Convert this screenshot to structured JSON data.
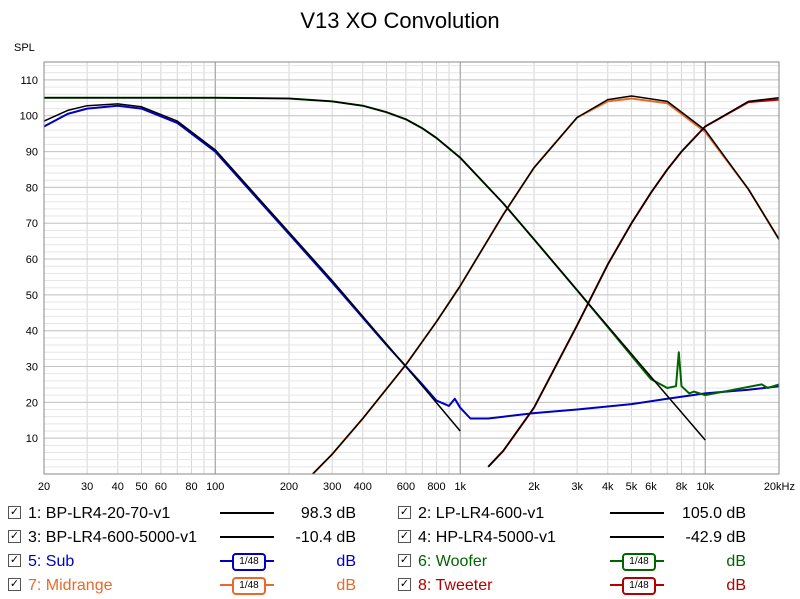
{
  "chart_data": {
    "type": "line",
    "title": "V13 XO Convolution",
    "ylabel": "SPL",
    "xlabel": "",
    "x_scale": "log",
    "xlim": [
      20,
      20000
    ],
    "ylim": [
      0,
      115
    ],
    "grid": true,
    "x_tick_labels": [
      {
        "value": 20,
        "label": "20"
      },
      {
        "value": 30,
        "label": "30"
      },
      {
        "value": 40,
        "label": "40"
      },
      {
        "value": 50,
        "label": "50"
      },
      {
        "value": 60,
        "label": "60"
      },
      {
        "value": 80,
        "label": "80"
      },
      {
        "value": 100,
        "label": "100"
      },
      {
        "value": 200,
        "label": "200"
      },
      {
        "value": 300,
        "label": "300"
      },
      {
        "value": 400,
        "label": "400"
      },
      {
        "value": 600,
        "label": "600"
      },
      {
        "value": 800,
        "label": "800"
      },
      {
        "value": 1000,
        "label": "1k"
      },
      {
        "value": 2000,
        "label": "2k"
      },
      {
        "value": 3000,
        "label": "3k"
      },
      {
        "value": 4000,
        "label": "4k"
      },
      {
        "value": 5000,
        "label": "5k"
      },
      {
        "value": 6000,
        "label": "6k"
      },
      {
        "value": 8000,
        "label": "8k"
      },
      {
        "value": 10000,
        "label": "10k"
      },
      {
        "value": 20000,
        "label": "20kHz"
      }
    ],
    "y_ticks": [
      10,
      20,
      30,
      40,
      50,
      60,
      70,
      80,
      90,
      100,
      110
    ],
    "series": [
      {
        "name": "BP-LR4-20-70-v1",
        "color": "#000000",
        "x": [
          20,
          25,
          30,
          40,
          50,
          70,
          100,
          150,
          200,
          300,
          500,
          700,
          1000
        ],
        "y": [
          98.5,
          101.5,
          102.8,
          103.3,
          102.5,
          98.5,
          90.5,
          77,
          67.5,
          54,
          36.3,
          24.6,
          12
        ]
      },
      {
        "name": "LP-LR4-600-v1",
        "color": "#000000",
        "x": [
          20,
          100,
          200,
          300,
          400,
          500,
          600,
          700,
          800,
          1000,
          1500,
          2000,
          3000,
          5000,
          7000,
          10000
        ],
        "y": [
          105,
          105,
          104.8,
          104,
          102.8,
          101,
          99,
          96.5,
          93.8,
          88.3,
          75.5,
          65.5,
          51.3,
          33.5,
          21.8,
          9.5
        ]
      },
      {
        "name": "BP-LR4-600-5000-v1",
        "color": "#000000",
        "x": [
          250,
          300,
          400,
          600,
          800,
          1000,
          1500,
          2000,
          3000,
          4000,
          5000,
          7000,
          10000,
          15000,
          20000
        ],
        "y": [
          0,
          5.5,
          15.5,
          30.5,
          42.5,
          52.5,
          72.5,
          85.5,
          99.5,
          104.5,
          105.5,
          104,
          96,
          79.5,
          65.5
        ]
      },
      {
        "name": "HP-LR4-5000-v1",
        "color": "#000000",
        "x": [
          1300,
          1500,
          2000,
          3000,
          4000,
          5000,
          6000,
          7000,
          8000,
          10000,
          15000,
          20000
        ],
        "y": [
          2,
          6.5,
          18.5,
          41.5,
          58.5,
          70,
          78.5,
          85,
          90,
          97,
          104,
          105
        ]
      },
      {
        "name": "Sub",
        "color": "#0000c0",
        "x": [
          20,
          25,
          30,
          40,
          50,
          70,
          100,
          150,
          200,
          300,
          500,
          700,
          800,
          900,
          950,
          1000,
          1100,
          1300,
          1500,
          2000,
          3000,
          5000,
          7000,
          10000,
          15000,
          20000
        ],
        "y": [
          97,
          100.5,
          102,
          102.8,
          102,
          98,
          90,
          76.5,
          67,
          53.5,
          36,
          25,
          20.5,
          19,
          21,
          18.5,
          15.5,
          15.5,
          16,
          17,
          18,
          19.5,
          21,
          22.5,
          23.5,
          24.5
        ]
      },
      {
        "name": "Woofer",
        "color": "#006400",
        "x": [
          20,
          100,
          200,
          300,
          400,
          500,
          600,
          700,
          800,
          1000,
          1500,
          2000,
          3000,
          4000,
          5000,
          6000,
          7000,
          7600,
          7800,
          8000,
          8300,
          8600,
          9000,
          10000,
          13000,
          17000,
          18000,
          20000
        ],
        "y": [
          105,
          105,
          104.8,
          104,
          102.8,
          101,
          99,
          96.5,
          93.8,
          88.3,
          75.5,
          65.5,
          51.3,
          41,
          33,
          26.5,
          24,
          24.5,
          34,
          24.5,
          23.5,
          22.5,
          23,
          22,
          23.5,
          25,
          24,
          25
        ]
      },
      {
        "name": "Midrange",
        "color": "#e86a2a",
        "x": [
          250,
          300,
          400,
          600,
          800,
          1000,
          1500,
          2000,
          3000,
          4000,
          5000,
          7000,
          10000,
          15000,
          20000
        ],
        "y": [
          0,
          5.5,
          15.5,
          30.5,
          42.5,
          52.5,
          72.5,
          85.5,
          99.5,
          104,
          104.8,
          103.5,
          95.5,
          79.5,
          65.5
        ]
      },
      {
        "name": "Tweeter",
        "color": "#b00000",
        "x": [
          1300,
          1500,
          2000,
          3000,
          4000,
          5000,
          6000,
          7000,
          8000,
          10000,
          15000,
          20000
        ],
        "y": [
          2,
          6.5,
          18.5,
          41.5,
          58.5,
          70,
          78.5,
          85,
          90,
          97,
          103.8,
          104.5
        ]
      }
    ]
  },
  "legend": {
    "rows": [
      {
        "left": {
          "id": "1:",
          "name": "BP-LR4-20-70-v1",
          "color": "#000000",
          "value": "98.3 dB",
          "checked": "✓"
        },
        "right": {
          "id": "2:",
          "name": "LP-LR4-600-v1",
          "color": "#000000",
          "value": "105.0 dB",
          "checked": "✓"
        }
      },
      {
        "left": {
          "id": "3:",
          "name": "BP-LR4-600-5000-v1",
          "color": "#000000",
          "value": "-10.4 dB",
          "checked": "✓"
        },
        "right": {
          "id": "4:",
          "name": "HP-LR4-5000-v1",
          "color": "#000000",
          "value": "-42.9 dB",
          "checked": "✓"
        }
      },
      {
        "left": {
          "id": "5:",
          "name": "Sub",
          "color": "#0000c0",
          "value": "dB",
          "smoothing": "1/48",
          "checked": "✓"
        },
        "right": {
          "id": "6:",
          "name": "Woofer",
          "color": "#006400",
          "value": "dB",
          "smoothing": "1/48",
          "checked": "✓"
        }
      },
      {
        "left": {
          "id": "7:",
          "name": "Midrange",
          "color": "#e86a2a",
          "value": "dB",
          "smoothing": "1/48",
          "checked": "✓"
        },
        "right": {
          "id": "8:",
          "name": "Tweeter",
          "color": "#b00000",
          "value": "dB",
          "smoothing": "1/48",
          "checked": "✓"
        }
      }
    ]
  }
}
